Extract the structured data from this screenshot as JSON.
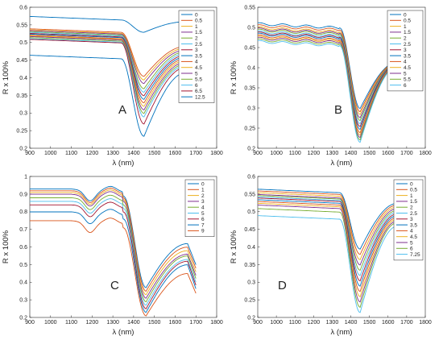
{
  "chart_data": [
    {
      "type": "line",
      "panel_label": "A",
      "xlabel": "λ (nm)",
      "ylabel": "R x 100%",
      "xlim": [
        900,
        1800
      ],
      "ylim": [
        0.2,
        0.6
      ],
      "x_ticks": [
        900,
        1000,
        1100,
        1200,
        1300,
        1400,
        1500,
        1600,
        1700,
        1800
      ],
      "y_ticks": [
        0.2,
        0.25,
        0.3,
        0.35,
        0.4,
        0.45,
        0.5,
        0.55,
        0.6
      ],
      "legend_position": "top-right",
      "legend": [
        "0",
        "0.5",
        "1",
        "1.5",
        "2",
        "2.5",
        "3",
        "3.5",
        "4",
        "4.5",
        "5",
        "5.5",
        "6",
        "6.5",
        "12.5"
      ],
      "x_range": [
        900,
        1650
      ],
      "series": [
        {
          "name": "0",
          "plateau": 0.575,
          "min": 0.53,
          "end": 0.56
        },
        {
          "name": "0.5",
          "plateau": 0.54,
          "min": 0.405,
          "end": 0.49
        },
        {
          "name": "1",
          "plateau": 0.537,
          "min": 0.395,
          "end": 0.485
        },
        {
          "name": "1.5",
          "plateau": 0.535,
          "min": 0.385,
          "end": 0.48
        },
        {
          "name": "2",
          "plateau": 0.532,
          "min": 0.37,
          "end": 0.475
        },
        {
          "name": "2.5",
          "plateau": 0.53,
          "min": 0.36,
          "end": 0.47
        },
        {
          "name": "3",
          "plateau": 0.527,
          "min": 0.35,
          "end": 0.465
        },
        {
          "name": "3.5",
          "plateau": 0.525,
          "min": 0.34,
          "end": 0.46
        },
        {
          "name": "4",
          "plateau": 0.522,
          "min": 0.33,
          "end": 0.455
        },
        {
          "name": "4.5",
          "plateau": 0.52,
          "min": 0.32,
          "end": 0.45
        },
        {
          "name": "5",
          "plateau": 0.518,
          "min": 0.31,
          "end": 0.445
        },
        {
          "name": "5.5",
          "plateau": 0.515,
          "min": 0.3,
          "end": 0.44
        },
        {
          "name": "6",
          "plateau": 0.512,
          "min": 0.29,
          "end": 0.435
        },
        {
          "name": "6.5",
          "plateau": 0.51,
          "min": 0.27,
          "end": 0.43
        },
        {
          "name": "12.5",
          "plateau": 0.465,
          "min": 0.235,
          "end": 0.415
        }
      ]
    },
    {
      "type": "line",
      "panel_label": "B",
      "xlabel": "λ (nm)",
      "ylabel": "R x 100%",
      "xlim": [
        900,
        1800
      ],
      "ylim": [
        0.2,
        0.55
      ],
      "x_ticks": [
        900,
        1000,
        1100,
        1200,
        1300,
        1400,
        1500,
        1600,
        1700,
        1800
      ],
      "y_ticks": [
        0.2,
        0.25,
        0.3,
        0.35,
        0.4,
        0.45,
        0.5,
        0.55
      ],
      "legend_position": "top-right",
      "legend": [
        "0",
        "0.5",
        "1",
        "1.5",
        "2",
        "2.5",
        "3",
        "3.5",
        "4",
        "4.5",
        "5",
        "5.5",
        "6"
      ],
      "x_range": [
        900,
        1650
      ],
      "series": [
        {
          "name": "0",
          "plateau": 0.51,
          "min": 0.3,
          "end": 0.415
        },
        {
          "name": "0.5",
          "plateau": 0.505,
          "min": 0.292,
          "end": 0.414
        },
        {
          "name": "1",
          "plateau": 0.5,
          "min": 0.285,
          "end": 0.413
        },
        {
          "name": "1.5",
          "plateau": 0.497,
          "min": 0.277,
          "end": 0.412
        },
        {
          "name": "2",
          "plateau": 0.494,
          "min": 0.27,
          "end": 0.411
        },
        {
          "name": "2.5",
          "plateau": 0.49,
          "min": 0.262,
          "end": 0.41
        },
        {
          "name": "3",
          "plateau": 0.487,
          "min": 0.255,
          "end": 0.41
        },
        {
          "name": "3.5",
          "plateau": 0.484,
          "min": 0.248,
          "end": 0.409
        },
        {
          "name": "4",
          "plateau": 0.48,
          "min": 0.24,
          "end": 0.408
        },
        {
          "name": "4.5",
          "plateau": 0.477,
          "min": 0.234,
          "end": 0.407
        },
        {
          "name": "5",
          "plateau": 0.474,
          "min": 0.228,
          "end": 0.406
        },
        {
          "name": "5.5",
          "plateau": 0.47,
          "min": 0.222,
          "end": 0.405
        },
        {
          "name": "6",
          "plateau": 0.466,
          "min": 0.216,
          "end": 0.404
        }
      ]
    },
    {
      "type": "line",
      "panel_label": "C",
      "xlabel": "λ (nm)",
      "ylabel": "R x 100%",
      "xlim": [
        900,
        1800
      ],
      "ylim": [
        0.2,
        1.0
      ],
      "x_ticks": [
        900,
        1000,
        1100,
        1200,
        1300,
        1400,
        1500,
        1600,
        1700,
        1800
      ],
      "y_ticks": [
        0.2,
        0.3,
        0.4,
        0.5,
        0.6,
        0.7,
        0.8,
        0.9,
        1
      ],
      "y_tick_labels": [
        "0.2",
        "0.3",
        "0.4",
        "0.5",
        "0.6",
        "0.7",
        "0.8",
        "0.9",
        "1"
      ],
      "legend_position": "top-right",
      "legend": [
        "0",
        "1",
        "2",
        "3",
        "4",
        "5",
        "6",
        "7",
        "9"
      ],
      "x_range": [
        900,
        1700
      ],
      "series": [
        {
          "name": "0",
          "plateau": 0.93,
          "min": 0.37,
          "end": 0.62
        },
        {
          "name": "1",
          "plateau": 0.92,
          "min": 0.35,
          "end": 0.6
        },
        {
          "name": "2",
          "plateau": 0.91,
          "min": 0.33,
          "end": 0.58
        },
        {
          "name": "3",
          "plateau": 0.9,
          "min": 0.31,
          "end": 0.56
        },
        {
          "name": "4",
          "plateau": 0.88,
          "min": 0.29,
          "end": 0.55
        },
        {
          "name": "5",
          "plateau": 0.86,
          "min": 0.27,
          "end": 0.53
        },
        {
          "name": "6",
          "plateau": 0.84,
          "min": 0.25,
          "end": 0.52
        },
        {
          "name": "7",
          "plateau": 0.8,
          "min": 0.23,
          "end": 0.5
        },
        {
          "name": "9",
          "plateau": 0.75,
          "min": 0.21,
          "end": 0.45
        }
      ]
    },
    {
      "type": "line",
      "panel_label": "D",
      "xlabel": "λ (nm)",
      "ylabel": "R x 100%",
      "xlim": [
        900,
        1800
      ],
      "ylim": [
        0.2,
        0.6
      ],
      "x_ticks": [
        900,
        1000,
        1100,
        1200,
        1300,
        1400,
        1500,
        1600,
        1700,
        1800
      ],
      "y_ticks": [
        0.2,
        0.25,
        0.3,
        0.35,
        0.4,
        0.45,
        0.5,
        0.55,
        0.6
      ],
      "legend_position": "top-right",
      "legend": [
        "0",
        "0.5",
        "1",
        "1.5",
        "2",
        "2.5",
        "3",
        "3.5",
        "4",
        "4.5",
        "5",
        "6",
        "7.25"
      ],
      "x_range": [
        900,
        1650
      ],
      "series": [
        {
          "name": "0",
          "plateau": 0.565,
          "min": 0.395,
          "end": 0.525
        },
        {
          "name": "0.5",
          "plateau": 0.56,
          "min": 0.38,
          "end": 0.52
        },
        {
          "name": "1",
          "plateau": 0.555,
          "min": 0.365,
          "end": 0.515
        },
        {
          "name": "1.5",
          "plateau": 0.55,
          "min": 0.35,
          "end": 0.51
        },
        {
          "name": "2",
          "plateau": 0.547,
          "min": 0.335,
          "end": 0.505
        },
        {
          "name": "2.5",
          "plateau": 0.543,
          "min": 0.32,
          "end": 0.5
        },
        {
          "name": "3",
          "plateau": 0.54,
          "min": 0.305,
          "end": 0.495
        },
        {
          "name": "3.5",
          "plateau": 0.535,
          "min": 0.29,
          "end": 0.49
        },
        {
          "name": "4",
          "plateau": 0.53,
          "min": 0.275,
          "end": 0.485
        },
        {
          "name": "4.5",
          "plateau": 0.525,
          "min": 0.26,
          "end": 0.48
        },
        {
          "name": "5",
          "plateau": 0.52,
          "min": 0.245,
          "end": 0.475
        },
        {
          "name": "6",
          "plateau": 0.51,
          "min": 0.23,
          "end": 0.47
        },
        {
          "name": "7.25",
          "plateau": 0.49,
          "min": 0.215,
          "end": 0.46
        }
      ]
    }
  ],
  "colors": [
    "#0072bd",
    "#d95319",
    "#edb120",
    "#7e2f8e",
    "#77ac30",
    "#4dbeee",
    "#a2142f",
    "#0072bd",
    "#d95319",
    "#edb120",
    "#7e2f8e",
    "#77ac30",
    "#4dbeee",
    "#a2142f",
    "#0072bd"
  ]
}
